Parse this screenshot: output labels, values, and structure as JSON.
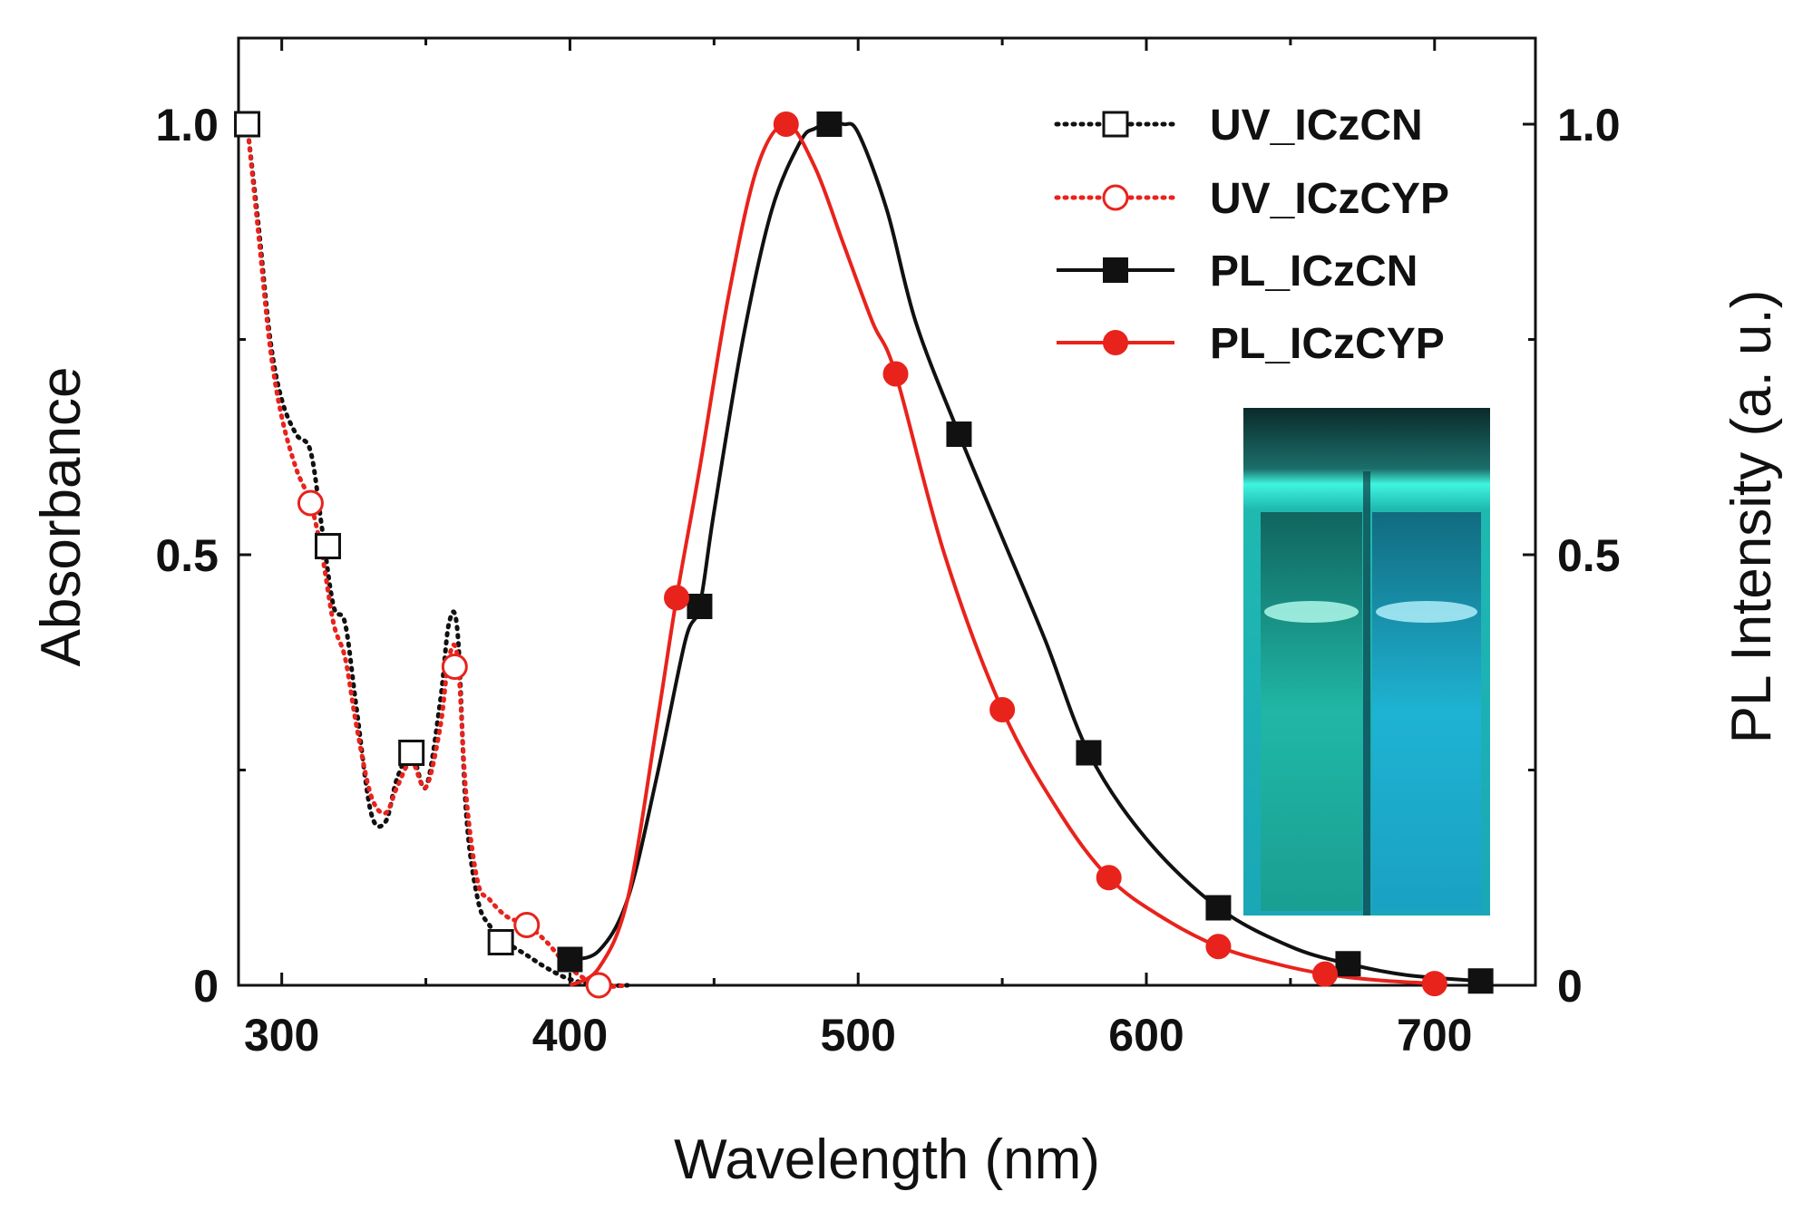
{
  "chart_data": {
    "type": "line",
    "xlabel": "Wavelength (nm)",
    "ylabel_left": "Absorbance",
    "ylabel_right": "PL Intensity (a. u.)",
    "xlim": [
      285,
      735
    ],
    "ylim": [
      0,
      1.1
    ],
    "x_ticks": [
      300,
      400,
      500,
      600,
      700
    ],
    "x_tick_labels": [
      "300",
      "400",
      "500",
      "600",
      "700"
    ],
    "y_ticks": [
      0,
      0.5,
      1.0
    ],
    "y_tick_labels": [
      "0",
      "0.5",
      "1.0"
    ],
    "y2_tick_labels": [
      "0",
      "0.5",
      "1.0"
    ],
    "grid": false,
    "legend_position": "top-right",
    "series": [
      {
        "name": "UV_ICzCN",
        "color": "#111111",
        "line": "dotted",
        "marker": "open-square",
        "x": [
          288,
          292,
          296,
          300,
          305,
          310,
          314,
          318,
          322,
          326,
          331,
          336,
          340,
          345,
          350,
          355,
          358,
          361,
          364,
          368,
          372,
          378,
          385,
          392,
          400,
          410,
          420
        ],
        "y": [
          1.0,
          0.88,
          0.75,
          0.68,
          0.64,
          0.62,
          0.53,
          0.44,
          0.42,
          0.32,
          0.2,
          0.19,
          0.24,
          0.27,
          0.23,
          0.33,
          0.42,
          0.41,
          0.2,
          0.1,
          0.07,
          0.05,
          0.035,
          0.02,
          0.007,
          0.0,
          0.0
        ],
        "marker_x": [
          288,
          316,
          345,
          376
        ],
        "marker_y": [
          1.0,
          0.51,
          0.27,
          0.05
        ]
      },
      {
        "name": "UV_ICzCYP",
        "color": "#e8231c",
        "line": "dotted",
        "marker": "open-circle",
        "x": [
          288,
          292,
          296,
          300,
          305,
          310,
          314,
          318,
          322,
          326,
          331,
          336,
          340,
          345,
          350,
          355,
          358,
          361,
          364,
          368,
          372,
          378,
          385,
          392,
          400,
          410,
          420
        ],
        "y": [
          1.0,
          0.87,
          0.74,
          0.66,
          0.6,
          0.56,
          0.5,
          0.42,
          0.38,
          0.3,
          0.22,
          0.2,
          0.23,
          0.26,
          0.23,
          0.3,
          0.38,
          0.38,
          0.22,
          0.12,
          0.1,
          0.08,
          0.07,
          0.05,
          0.02,
          0.0,
          0.0
        ],
        "marker_x": [
          310,
          360,
          385,
          410
        ],
        "marker_y": [
          0.56,
          0.37,
          0.07,
          0.0
        ]
      },
      {
        "name": "PL_ICzCN",
        "color": "#111111",
        "line": "solid",
        "marker": "filled-square",
        "x": [
          400,
          410,
          420,
          430,
          440,
          445,
          450,
          460,
          470,
          480,
          485,
          490,
          495,
          500,
          510,
          520,
          535,
          550,
          565,
          580,
          600,
          625,
          650,
          670,
          690,
          716
        ],
        "y": [
          0.03,
          0.04,
          0.1,
          0.24,
          0.4,
          0.44,
          0.55,
          0.75,
          0.9,
          0.98,
          0.995,
          1.0,
          1.0,
          0.99,
          0.9,
          0.77,
          0.64,
          0.52,
          0.4,
          0.27,
          0.17,
          0.09,
          0.045,
          0.025,
          0.012,
          0.005
        ],
        "marker_x": [
          400,
          445,
          490,
          535,
          580,
          625,
          670,
          716
        ],
        "marker_y": [
          0.03,
          0.44,
          1.0,
          0.64,
          0.27,
          0.09,
          0.025,
          0.005
        ]
      },
      {
        "name": "PL_ICzCYP",
        "color": "#e8231c",
        "line": "solid",
        "marker": "filled-circle",
        "x": [
          400,
          410,
          420,
          430,
          437,
          445,
          455,
          465,
          475,
          485,
          495,
          505,
          513,
          530,
          550,
          570,
          587,
          605,
          625,
          645,
          662,
          680,
          700
        ],
        "y": [
          0.0,
          0.02,
          0.1,
          0.3,
          0.45,
          0.6,
          0.8,
          0.95,
          1.0,
          0.95,
          0.86,
          0.77,
          0.71,
          0.5,
          0.32,
          0.2,
          0.125,
          0.08,
          0.045,
          0.025,
          0.013,
          0.006,
          0.002
        ],
        "marker_x": [
          437,
          475,
          513,
          550,
          587,
          625,
          662,
          700
        ],
        "marker_y": [
          0.45,
          1.0,
          0.71,
          0.32,
          0.125,
          0.045,
          0.013,
          0.002
        ]
      }
    ],
    "inset_image": "photo-of-two-fluorescent-cuvettes"
  }
}
